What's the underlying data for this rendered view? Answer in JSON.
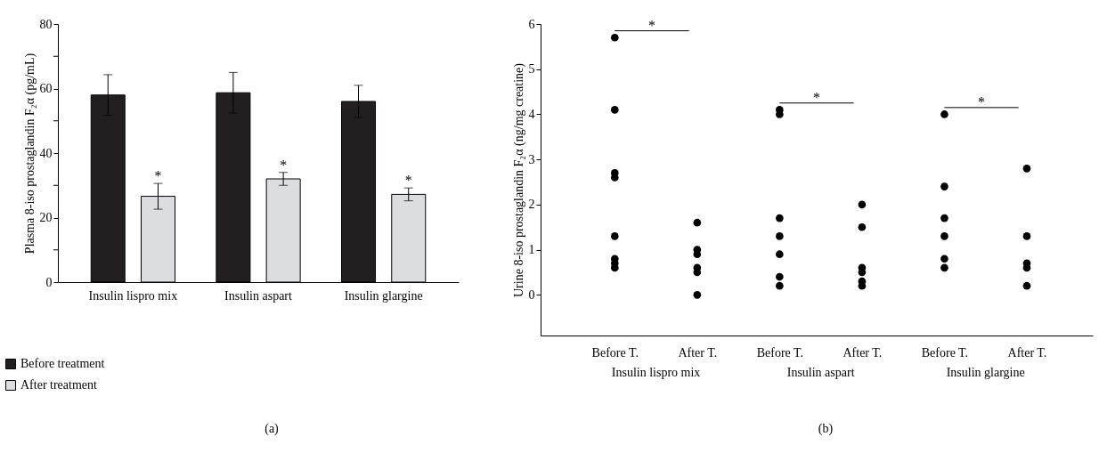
{
  "chart_data": [
    {
      "type": "bar",
      "ylabel": "Plasma 8-iso prostaglandin F₂α (pg/mL)",
      "categories": [
        "Insulin lispro mix",
        "Insulin aspart",
        "Insulin glargine"
      ],
      "series": [
        {
          "name": "Before treatment",
          "color": "#231f20",
          "values": [
            58,
            58.7,
            56
          ],
          "errors": [
            6.3,
            6.3,
            5
          ]
        },
        {
          "name": "After treatment",
          "color": "#dcdde0",
          "values": [
            26.6,
            32,
            27.2
          ],
          "errors": [
            4,
            2,
            2
          ]
        }
      ],
      "ylim": [
        0,
        80
      ],
      "yticks": [
        0,
        {
          "value": 10,
          "label": null
        },
        20,
        {
          "value": 30,
          "label": null
        },
        40,
        {
          "value": 50,
          "label": null
        },
        60,
        {
          "value": 70,
          "label": null
        },
        80
      ],
      "grid": false,
      "legend": "bottom",
      "annotations": [
        "*",
        "*",
        "*",
        "(a)"
      ]
    },
    {
      "type": "scatter",
      "ylabel": "Urine 8-iso prostaglandin F₂α (ng/mg creatine)",
      "categories": [
        "Before T.",
        "After T.",
        "Before T.",
        "After T.",
        "Before T.",
        "After T."
      ],
      "series": [
        {
          "color": "#000000",
          "values": [
            5.7,
            1.6,
            4.1,
            2.0,
            4.0,
            2.8
          ]
        },
        {
          "color": "#000000",
          "values": [
            4.1,
            1.0,
            4.0,
            1.5,
            2.4,
            1.3
          ]
        },
        {
          "color": "#000000",
          "values": [
            2.7,
            0.9,
            1.7,
            0.6,
            1.7,
            0.7
          ]
        },
        {
          "color": "#000000",
          "values": [
            2.6,
            0.6,
            1.3,
            0.5,
            1.3,
            0.6
          ]
        },
        {
          "color": "#000000",
          "values": [
            1.3,
            0.5,
            0.9,
            0.3,
            0.8,
            0.2
          ]
        },
        {
          "color": "#000000",
          "values": [
            0.8,
            0.0,
            0.4,
            0.2,
            0.6,
            null
          ]
        },
        {
          "color": "#000000",
          "values": [
            0.7,
            null,
            0.2,
            null,
            null,
            null
          ]
        },
        {
          "color": "#000000",
          "values": [
            0.6,
            null,
            null,
            null,
            null,
            null
          ]
        }
      ],
      "ylim": [
        -0.9,
        6
      ],
      "yticks": [
        0,
        1,
        2,
        3,
        4,
        5,
        6
      ],
      "grid": false,
      "legend": false,
      "marker": "circle",
      "annotations": [
        "*",
        "*",
        "*",
        "Insulin lispro mix",
        "Insulin aspart",
        "Insulin glargine",
        "(b)"
      ]
    }
  ]
}
